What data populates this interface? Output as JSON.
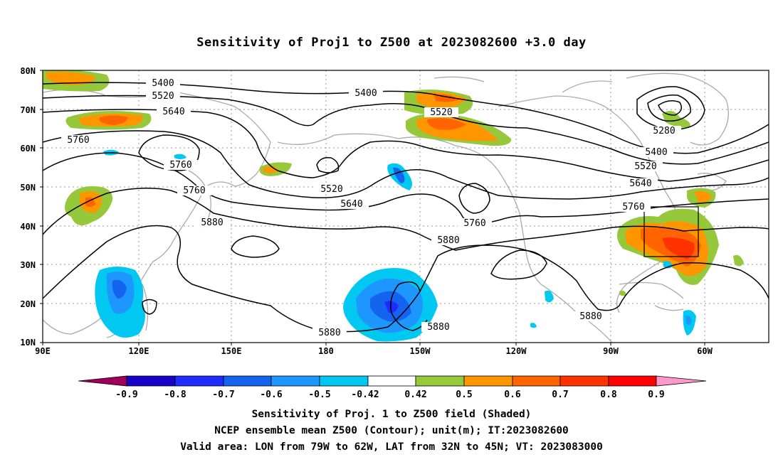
{
  "title": "Sensitivity of Proj1 to Z500 at 2023082600 +3.0 day",
  "map": {
    "lat_labels": [
      "80N",
      "70N",
      "60N",
      "50N",
      "40N",
      "30N",
      "20N",
      "10N"
    ],
    "lon_labels": [
      "90E",
      "120E",
      "150E",
      "180",
      "150W",
      "120W",
      "90W",
      "60W"
    ],
    "contour_labels": [
      {
        "text": "5400"
      },
      {
        "text": "5520"
      },
      {
        "text": "5640"
      },
      {
        "text": "5760"
      },
      {
        "text": "5400"
      },
      {
        "text": "5520"
      },
      {
        "text": "5760"
      },
      {
        "text": "5760"
      },
      {
        "text": "5880"
      },
      {
        "text": "5520"
      },
      {
        "text": "5640"
      },
      {
        "text": "5760"
      },
      {
        "text": "5880"
      },
      {
        "text": "5280"
      },
      {
        "text": "5400"
      },
      {
        "text": "5520"
      },
      {
        "text": "5640"
      },
      {
        "text": "5760"
      },
      {
        "text": "5880"
      },
      {
        "text": "5880"
      },
      {
        "text": "5880"
      }
    ],
    "valid_area": {
      "lon_from": "79W",
      "lon_to": "62W",
      "lat_from": "32N",
      "lat_to": "45N"
    }
  },
  "colorbar": {
    "labels": [
      "-0.9",
      "-0.8",
      "-0.7",
      "-0.6",
      "-0.5",
      "-0.42",
      "0.42",
      "0.5",
      "0.6",
      "0.7",
      "0.8",
      "0.9"
    ],
    "colors": [
      "#a0005a",
      "#1800c8",
      "#1e2cff",
      "#1464f0",
      "#1e96ff",
      "#00c8f0",
      "#ffffff",
      "#96c83c",
      "#ff9600",
      "#ff6400",
      "#ff3200",
      "#ff0000",
      "#ff99cc"
    ]
  },
  "footer": {
    "line1": "Sensitivity of Proj. 1 to Z500 field (Shaded)",
    "line2": "NCEP ensemble mean Z500 (Contour); unit(m); IT:2023082600",
    "line3": "Valid area: LON from 79W to 62W, LAT from 32N to 45N; VT: 2023083000"
  }
}
